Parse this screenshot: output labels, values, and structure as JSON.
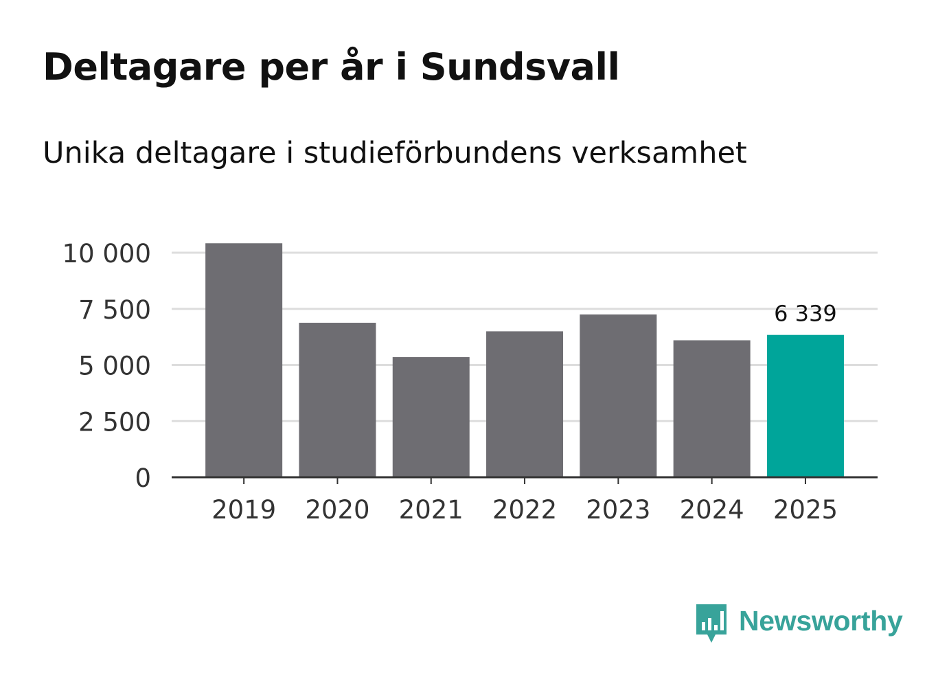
{
  "title": "Deltagare per år i Sundsvall",
  "subtitle": "Unika deltagare i studieförbundens verksamhet",
  "brand": {
    "name": "Newsworthy",
    "icon": "bar-chart-speech-bubble-icon",
    "color": "#38a39a"
  },
  "chart_data": {
    "type": "bar",
    "categories": [
      "2019",
      "2020",
      "2021",
      "2022",
      "2023",
      "2024",
      "2025"
    ],
    "values": [
      10420,
      6880,
      5350,
      6500,
      7250,
      6100,
      6339
    ],
    "highlight_index": 6,
    "highlight_label": "6 339",
    "yticks": [
      0,
      2500,
      5000,
      7500,
      10000
    ],
    "ytick_labels": [
      "0",
      "2 500",
      "5 000",
      "7 500",
      "10 000"
    ],
    "ylim": [
      0,
      10000
    ],
    "grid": true,
    "colors": {
      "bar": "#6e6d72",
      "highlight": "#00a59a",
      "grid": "#dddddd",
      "axis": "#333333"
    }
  }
}
